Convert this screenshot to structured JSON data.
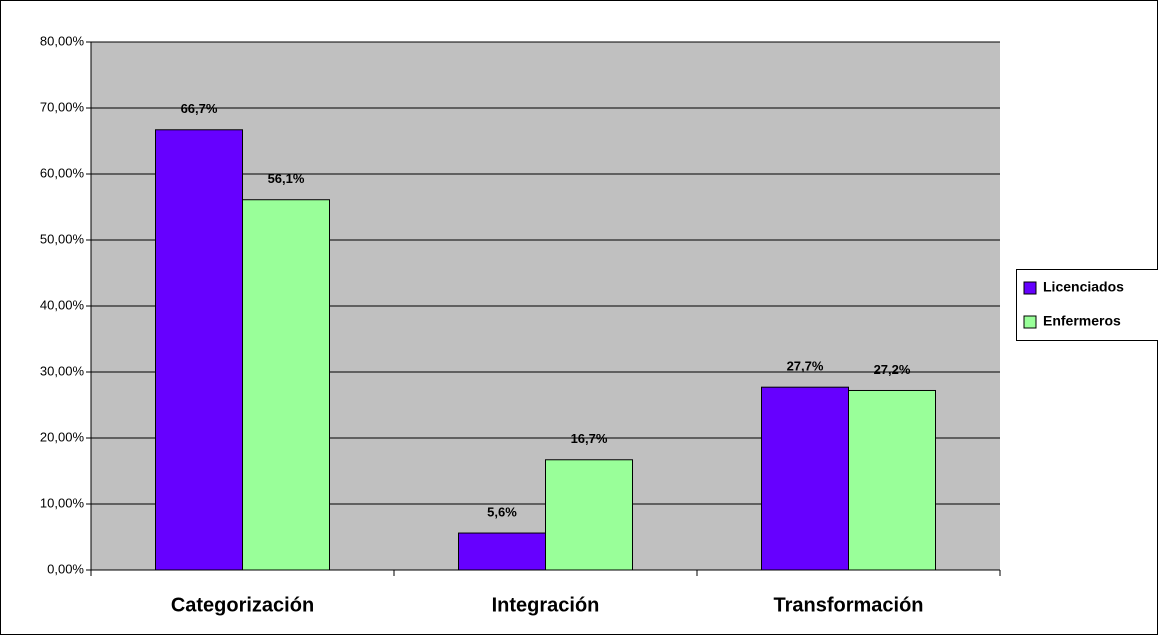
{
  "chart_data": {
    "type": "bar",
    "categories": [
      "Categorización",
      "Integración",
      "Transformación"
    ],
    "series": [
      {
        "name": "Licenciados",
        "color": "#6600ff",
        "values": [
          66.7,
          5.6,
          27.7
        ],
        "value_labels": [
          "66,7%",
          "5,6%",
          "27,7%"
        ]
      },
      {
        "name": "Enfermeros",
        "color": "#99ff99",
        "values": [
          56.1,
          16.7,
          27.2
        ],
        "value_labels": [
          "56,1%",
          "16,7%",
          "27,2%"
        ]
      }
    ],
    "ylim": [
      0,
      80
    ],
    "yticks": [
      {
        "value": 0,
        "label": "0,00%"
      },
      {
        "value": 10,
        "label": "10,00%"
      },
      {
        "value": 20,
        "label": "20,00%"
      },
      {
        "value": 30,
        "label": "30,00%"
      },
      {
        "value": 40,
        "label": "40,00%"
      },
      {
        "value": 50,
        "label": "50,00%"
      },
      {
        "value": 60,
        "label": "60,00%"
      },
      {
        "value": 70,
        "label": "70,00%"
      },
      {
        "value": 80,
        "label": "80,00%"
      }
    ],
    "grid": true,
    "legend": "right"
  }
}
